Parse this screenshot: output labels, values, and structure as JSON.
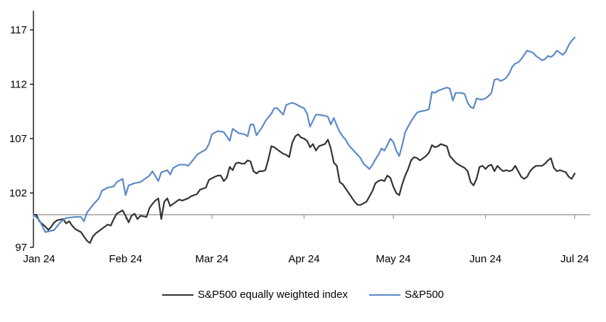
{
  "chart_data": {
    "type": "line",
    "title": "",
    "xlabel": "",
    "ylabel": "",
    "x_axis": {
      "tick_labels": [
        "Jan 24",
        "Feb 24",
        "Mar 24",
        "Apr 24",
        "May 24",
        "Jun 24",
        "Jul 24"
      ],
      "tick_days": [
        0,
        31,
        60,
        91,
        121,
        152,
        182
      ],
      "domain_days": [
        0,
        187
      ],
      "unit": "days since Jan 1 2024"
    },
    "y_axis": {
      "tick_labels": [
        "97",
        "102",
        "107",
        "112",
        "117"
      ],
      "ticks": [
        97,
        102,
        107,
        112,
        117
      ],
      "min": 97,
      "max": 118.6,
      "baseline_value": 100
    },
    "grid": "off",
    "legend_position": "bottom",
    "series": [
      {
        "name": "S&P500 equally weighted index",
        "color": "#333333",
        "points": [
          [
            0,
            100
          ],
          [
            1,
            100
          ],
          [
            2,
            99.4
          ],
          [
            4,
            98.9
          ],
          [
            5,
            98.6
          ],
          [
            6,
            98.9
          ],
          [
            7,
            99.3
          ],
          [
            8,
            99.5
          ],
          [
            10,
            99.6
          ],
          [
            11,
            99.2
          ],
          [
            12,
            99.4
          ],
          [
            13,
            99.0
          ],
          [
            14,
            98.7
          ],
          [
            16,
            98.4
          ],
          [
            17,
            98.0
          ],
          [
            18,
            97.6
          ],
          [
            19,
            97.4
          ],
          [
            20,
            98.0
          ],
          [
            21,
            98.3
          ],
          [
            22,
            98.5
          ],
          [
            24,
            98.9
          ],
          [
            25,
            99.1
          ],
          [
            26,
            99.0
          ],
          [
            27,
            99.6
          ],
          [
            28,
            100.1
          ],
          [
            30,
            100.4
          ],
          [
            31,
            99.9
          ],
          [
            32,
            99.3
          ],
          [
            33,
            99.9
          ],
          [
            34,
            100.1
          ],
          [
            35,
            99.6
          ],
          [
            36,
            99.9
          ],
          [
            38,
            99.8
          ],
          [
            39,
            100.6
          ],
          [
            40,
            101.0
          ],
          [
            41,
            101.3
          ],
          [
            42,
            101.5
          ],
          [
            43,
            99.6
          ],
          [
            44,
            101.2
          ],
          [
            45,
            101.5
          ],
          [
            46,
            100.8
          ],
          [
            47,
            101.0
          ],
          [
            48,
            101.2
          ],
          [
            49,
            101.4
          ],
          [
            50,
            101.3
          ],
          [
            51,
            101.4
          ],
          [
            52,
            101.5
          ],
          [
            53,
            101.7
          ],
          [
            55,
            101.9
          ],
          [
            56,
            102.3
          ],
          [
            57,
            102.4
          ],
          [
            58,
            102.5
          ],
          [
            59,
            103.2
          ],
          [
            61,
            103.5
          ],
          [
            62,
            103.6
          ],
          [
            63,
            103.6
          ],
          [
            64,
            103.1
          ],
          [
            65,
            103.4
          ],
          [
            66,
            104.4
          ],
          [
            67,
            104.1
          ],
          [
            68,
            104.7
          ],
          [
            69,
            104.8
          ],
          [
            70,
            104.7
          ],
          [
            71,
            104.7
          ],
          [
            72,
            105.0
          ],
          [
            73,
            104.9
          ],
          [
            74,
            104.0
          ],
          [
            75,
            103.8
          ],
          [
            76,
            104.0
          ],
          [
            77,
            104.0
          ],
          [
            78,
            104.1
          ],
          [
            79,
            105.1
          ],
          [
            80,
            106.3
          ],
          [
            81,
            106.2
          ],
          [
            83,
            105.8
          ],
          [
            84,
            105.6
          ],
          [
            85,
            105.5
          ],
          [
            86,
            105.3
          ],
          [
            87,
            106.6
          ],
          [
            88,
            107.2
          ],
          [
            89,
            107.4
          ],
          [
            90,
            107.1
          ],
          [
            91,
            107.0
          ],
          [
            92,
            106.8
          ],
          [
            93,
            106.2
          ],
          [
            94,
            106.5
          ],
          [
            95,
            105.9
          ],
          [
            96,
            106.3
          ],
          [
            98,
            106.5
          ],
          [
            99,
            106.9
          ],
          [
            100,
            106.1
          ],
          [
            101,
            104.8
          ],
          [
            102,
            104.5
          ],
          [
            103,
            103.0
          ],
          [
            104,
            102.8
          ],
          [
            105,
            102.4
          ],
          [
            106,
            102.0
          ],
          [
            107,
            101.6
          ],
          [
            108,
            101.2
          ],
          [
            109,
            100.9
          ],
          [
            110,
            100.9
          ],
          [
            112,
            101.2
          ],
          [
            113,
            101.7
          ],
          [
            114,
            102.2
          ],
          [
            115,
            102.9
          ],
          [
            116,
            103.1
          ],
          [
            117,
            103.2
          ],
          [
            118,
            103.1
          ],
          [
            119,
            103.6
          ],
          [
            120,
            103.4
          ],
          [
            121,
            102.6
          ],
          [
            122,
            102.0
          ],
          [
            123,
            101.8
          ],
          [
            124,
            102.8
          ],
          [
            125,
            103.6
          ],
          [
            126,
            104.2
          ],
          [
            127,
            105.0
          ],
          [
            128,
            105.3
          ],
          [
            129,
            105.2
          ],
          [
            130,
            105.0
          ],
          [
            132,
            105.4
          ],
          [
            133,
            105.7
          ],
          [
            134,
            106.4
          ],
          [
            135,
            106.2
          ],
          [
            136,
            106.3
          ],
          [
            137,
            106.5
          ],
          [
            138,
            106.4
          ],
          [
            139,
            106.3
          ],
          [
            140,
            105.4
          ],
          [
            141,
            105.1
          ],
          [
            142,
            104.8
          ],
          [
            143,
            104.6
          ],
          [
            145,
            104.3
          ],
          [
            146,
            104.0
          ],
          [
            147,
            103.0
          ],
          [
            148,
            102.7
          ],
          [
            149,
            103.3
          ],
          [
            150,
            104.4
          ],
          [
            151,
            104.5
          ],
          [
            152,
            104.2
          ],
          [
            153,
            104.5
          ],
          [
            154,
            104.6
          ],
          [
            155,
            104.0
          ],
          [
            156,
            104.5
          ],
          [
            157,
            104.2
          ],
          [
            158,
            104.0
          ],
          [
            159,
            104.1
          ],
          [
            160,
            104.0
          ],
          [
            161,
            104.1
          ],
          [
            162,
            104.5
          ],
          [
            163,
            104.0
          ],
          [
            164,
            103.5
          ],
          [
            165,
            103.3
          ],
          [
            166,
            103.5
          ],
          [
            167,
            104.0
          ],
          [
            168,
            104.3
          ],
          [
            169,
            104.5
          ],
          [
            170,
            104.5
          ],
          [
            171,
            104.5
          ],
          [
            172,
            104.7
          ],
          [
            173,
            105.0
          ],
          [
            174,
            105.2
          ],
          [
            175,
            104.3
          ],
          [
            176,
            104.0
          ],
          [
            177,
            104.1
          ],
          [
            178,
            104.0
          ],
          [
            179,
            103.9
          ],
          [
            180,
            103.5
          ],
          [
            181,
            103.3
          ],
          [
            182,
            103.8
          ]
        ]
      },
      {
        "name": "S&P500",
        "color": "#5b8ac6",
        "points": [
          [
            0,
            100
          ],
          [
            2,
            99.5
          ],
          [
            4,
            98.4
          ],
          [
            7,
            98.6
          ],
          [
            9,
            99.3
          ],
          [
            11,
            99.7
          ],
          [
            14,
            99.8
          ],
          [
            16,
            99.8
          ],
          [
            17,
            99.4
          ],
          [
            18,
            100.2
          ],
          [
            20,
            100.9
          ],
          [
            22,
            101.5
          ],
          [
            23,
            102.2
          ],
          [
            25,
            102.5
          ],
          [
            27,
            102.6
          ],
          [
            28,
            103.0
          ],
          [
            30,
            103.3
          ],
          [
            31,
            101.8
          ],
          [
            32,
            102.7
          ],
          [
            34,
            102.9
          ],
          [
            36,
            103.0
          ],
          [
            37,
            103.2
          ],
          [
            39,
            103.6
          ],
          [
            40,
            104.0
          ],
          [
            42,
            103.1
          ],
          [
            43,
            103.9
          ],
          [
            45,
            104.1
          ],
          [
            46,
            103.7
          ],
          [
            47,
            104.3
          ],
          [
            49,
            104.6
          ],
          [
            51,
            104.6
          ],
          [
            52,
            104.5
          ],
          [
            53,
            104.8
          ],
          [
            55,
            105.5
          ],
          [
            56,
            105.7
          ],
          [
            58,
            106.0
          ],
          [
            59,
            106.5
          ],
          [
            60,
            107.4
          ],
          [
            62,
            107.7
          ],
          [
            64,
            107.6
          ],
          [
            66,
            106.8
          ],
          [
            67,
            107.9
          ],
          [
            69,
            107.5
          ],
          [
            71,
            107.4
          ],
          [
            72,
            107.2
          ],
          [
            73,
            108.3
          ],
          [
            74,
            108.3
          ],
          [
            75,
            107.3
          ],
          [
            77,
            108.1
          ],
          [
            78,
            108.6
          ],
          [
            80,
            109.3
          ],
          [
            81,
            109.8
          ],
          [
            82,
            109.8
          ],
          [
            84,
            109.2
          ],
          [
            85,
            110.1
          ],
          [
            87,
            110.3
          ],
          [
            88,
            110.2
          ],
          [
            90,
            109.9
          ],
          [
            91,
            109.8
          ],
          [
            92,
            109.3
          ],
          [
            93,
            108.1
          ],
          [
            95,
            109.2
          ],
          [
            96,
            109.2
          ],
          [
            98,
            109.1
          ],
          [
            99,
            109.0
          ],
          [
            100,
            108.3
          ],
          [
            101,
            108.9
          ],
          [
            102,
            108.2
          ],
          [
            103,
            107.6
          ],
          [
            104,
            107.2
          ],
          [
            105,
            106.9
          ],
          [
            106,
            106.4
          ],
          [
            108,
            105.8
          ],
          [
            109,
            105.5
          ],
          [
            110,
            105.2
          ],
          [
            111,
            104.7
          ],
          [
            113,
            104.2
          ],
          [
            114,
            104.6
          ],
          [
            115,
            105.1
          ],
          [
            116,
            105.5
          ],
          [
            117,
            106.1
          ],
          [
            118,
            105.9
          ],
          [
            119,
            106.4
          ],
          [
            120,
            107.0
          ],
          [
            121,
            106.7
          ],
          [
            122,
            105.9
          ],
          [
            123,
            105.4
          ],
          [
            124,
            106.4
          ],
          [
            125,
            107.6
          ],
          [
            126,
            108.1
          ],
          [
            127,
            108.6
          ],
          [
            128,
            109.0
          ],
          [
            129,
            109.4
          ],
          [
            130,
            109.5
          ],
          [
            132,
            109.6
          ],
          [
            133,
            109.7
          ],
          [
            134,
            111.3
          ],
          [
            135,
            111.2
          ],
          [
            136,
            111.4
          ],
          [
            137,
            111.5
          ],
          [
            139,
            111.7
          ],
          [
            140,
            111.6
          ],
          [
            141,
            110.5
          ],
          [
            142,
            111.2
          ],
          [
            144,
            111.2
          ],
          [
            145,
            111.1
          ],
          [
            146,
            110.3
          ],
          [
            147,
            109.9
          ],
          [
            148,
            109.8
          ],
          [
            149,
            110.7
          ],
          [
            150,
            110.6
          ],
          [
            151,
            110.6
          ],
          [
            152,
            110.7
          ],
          [
            153,
            110.9
          ],
          [
            154,
            111.2
          ],
          [
            155,
            112.4
          ],
          [
            156,
            112.5
          ],
          [
            157,
            112.3
          ],
          [
            158,
            112.4
          ],
          [
            159,
            112.6
          ],
          [
            160,
            113.0
          ],
          [
            161,
            113.6
          ],
          [
            162,
            113.9
          ],
          [
            163,
            114.0
          ],
          [
            164,
            114.3
          ],
          [
            165,
            114.7
          ],
          [
            166,
            115.1
          ],
          [
            168,
            114.9
          ],
          [
            169,
            114.6
          ],
          [
            170,
            114.4
          ],
          [
            171,
            114.2
          ],
          [
            172,
            114.3
          ],
          [
            173,
            114.6
          ],
          [
            174,
            114.5
          ],
          [
            175,
            114.7
          ],
          [
            176,
            115.1
          ],
          [
            177,
            114.9
          ],
          [
            178,
            114.7
          ],
          [
            179,
            115.0
          ],
          [
            180,
            115.6
          ],
          [
            181,
            116.0
          ],
          [
            182,
            116.3
          ]
        ]
      }
    ]
  },
  "legend": {
    "items": [
      {
        "label": "S&P500 equally weighted index",
        "color": "#333333"
      },
      {
        "label": "S&P500",
        "color": "#5b8ac6"
      }
    ]
  },
  "colors": {
    "background": "#ffffff",
    "axis": "#000000",
    "baseline": "#a6a6a6",
    "tick_text": "#000000"
  }
}
